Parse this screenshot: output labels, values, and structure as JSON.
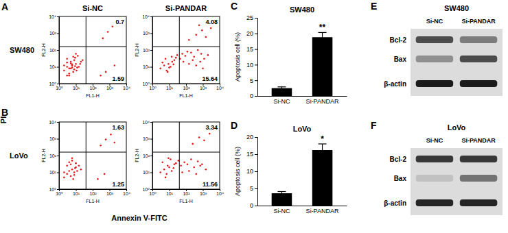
{
  "figure": {
    "panels": [
      "A",
      "B",
      "C",
      "D",
      "E",
      "F"
    ],
    "flow_rows": [
      "SW480",
      "LoVo"
    ],
    "flow_columns": [
      "Si-NC",
      "Si-PANDAR"
    ],
    "x_label": "Annexin V-FITC",
    "y_label": "PI"
  },
  "chart_data": [
    {
      "type": "scatter",
      "log": true,
      "color": "#e41a1c",
      "x_label": "FL1-H",
      "y_label": "FL2-H",
      "xlim": [
        1,
        10000
      ],
      "ylim": [
        1,
        10000
      ],
      "xticks": [
        {
          "value": 1,
          "label": "10⁰"
        },
        {
          "value": 10,
          "label": "10¹"
        },
        {
          "value": 100,
          "label": "10²"
        },
        {
          "value": 1000,
          "label": "10³"
        },
        {
          "value": 10000,
          "label": "10⁴"
        }
      ],
      "yticks": [
        {
          "value": 1,
          "label": "10⁰"
        },
        {
          "value": 10,
          "label": "10¹"
        },
        {
          "value": 100,
          "label": "10²"
        },
        {
          "value": 1000,
          "label": "10³"
        },
        {
          "value": 10000,
          "label": "10⁴"
        }
      ],
      "gates": {
        "x": 40,
        "y": 160
      },
      "quadrants": {
        "upper_right": 0.7,
        "lower_right": 1.59
      },
      "x": [
        2,
        3,
        4,
        5,
        6,
        8,
        10,
        12,
        3,
        5,
        7,
        9,
        4,
        6,
        8,
        11,
        2,
        3,
        5,
        7,
        15,
        20,
        6,
        9,
        4,
        13,
        18,
        25,
        3,
        10,
        400,
        800,
        1500,
        300,
        600,
        2000
      ],
      "values": [
        6,
        10,
        4,
        8,
        12,
        7,
        15,
        9,
        18,
        20,
        5,
        11,
        3,
        14,
        25,
        6,
        12,
        30,
        16,
        40,
        10,
        20,
        9,
        35,
        8,
        45,
        15,
        25,
        3,
        60,
        500,
        1200,
        2500,
        3,
        5,
        12
      ]
    },
    {
      "type": "scatter",
      "log": true,
      "color": "#e41a1c",
      "x_label": "FL1-H",
      "y_label": "FL2-H",
      "xlim": [
        1,
        10000
      ],
      "ylim": [
        1,
        10000
      ],
      "xticks": [
        {
          "value": 1,
          "label": "10⁰"
        },
        {
          "value": 10,
          "label": "10¹"
        },
        {
          "value": 100,
          "label": "10²"
        },
        {
          "value": 1000,
          "label": "10³"
        },
        {
          "value": 10000,
          "label": "10⁴"
        }
      ],
      "yticks": [
        {
          "value": 1,
          "label": "10⁰"
        },
        {
          "value": 10,
          "label": "10¹"
        },
        {
          "value": 100,
          "label": "10²"
        },
        {
          "value": 1000,
          "label": "10³"
        },
        {
          "value": 10000,
          "label": "10⁴"
        }
      ],
      "gates": {
        "x": 40,
        "y": 160
      },
      "quadrants": {
        "upper_right": 4.08,
        "lower_right": 15.64
      },
      "x": [
        3,
        5,
        7,
        9,
        12,
        15,
        20,
        4,
        6,
        10,
        14,
        25,
        8,
        18,
        30,
        45,
        60,
        90,
        120,
        200,
        300,
        500,
        800,
        1200,
        70,
        150,
        250,
        400,
        700,
        1000,
        2000,
        150,
        400,
        900,
        1500,
        3000,
        600
      ],
      "values": [
        8,
        12,
        6,
        15,
        10,
        20,
        25,
        18,
        30,
        9,
        40,
        35,
        5,
        14,
        50,
        30,
        60,
        45,
        80,
        70,
        40,
        100,
        60,
        30,
        20,
        15,
        25,
        12,
        20,
        8,
        50,
        400,
        800,
        1500,
        600,
        2000,
        3000
      ]
    },
    {
      "type": "scatter",
      "log": true,
      "color": "#e41a1c",
      "x_label": "FL1-H",
      "y_label": "FL2-H",
      "xlim": [
        1,
        10000
      ],
      "ylim": [
        1,
        10000
      ],
      "xticks": [
        {
          "value": 1,
          "label": "10⁰"
        },
        {
          "value": 10,
          "label": "10¹"
        },
        {
          "value": 100,
          "label": "10²"
        },
        {
          "value": 1000,
          "label": "10³"
        },
        {
          "value": 10000,
          "label": "10⁴"
        }
      ],
      "yticks": [
        {
          "value": 1,
          "label": "10⁰"
        },
        {
          "value": 10,
          "label": "10¹"
        },
        {
          "value": 100,
          "label": "10²"
        },
        {
          "value": 1000,
          "label": "10³"
        },
        {
          "value": 10000,
          "label": "10⁴"
        }
      ],
      "gates": {
        "x": 40,
        "y": 160
      },
      "quadrants": {
        "upper_right": 1.63,
        "lower_right": 1.25
      },
      "x": [
        2,
        3,
        4,
        5,
        6,
        8,
        10,
        3,
        5,
        7,
        9,
        12,
        4,
        6,
        8,
        15,
        20,
        2,
        6,
        10,
        300,
        600,
        1200,
        2000,
        200,
        500
      ],
      "values": [
        5,
        8,
        12,
        6,
        15,
        10,
        20,
        25,
        30,
        4,
        18,
        12,
        40,
        50,
        7,
        25,
        15,
        10,
        70,
        35,
        400,
        900,
        1800,
        600,
        4,
        8
      ]
    },
    {
      "type": "scatter",
      "log": true,
      "color": "#e41a1c",
      "x_label": "FL1-H",
      "y_label": "FL2-H",
      "xlim": [
        1,
        10000
      ],
      "ylim": [
        1,
        10000
      ],
      "xticks": [
        {
          "value": 1,
          "label": "10⁰"
        },
        {
          "value": 10,
          "label": "10¹"
        },
        {
          "value": 100,
          "label": "10²"
        },
        {
          "value": 1000,
          "label": "10³"
        },
        {
          "value": 10000,
          "label": "10⁴"
        }
      ],
      "yticks": [
        {
          "value": 1,
          "label": "10⁰"
        },
        {
          "value": 10,
          "label": "10¹"
        },
        {
          "value": 100,
          "label": "10²"
        },
        {
          "value": 1000,
          "label": "10³"
        },
        {
          "value": 10000,
          "label": "10⁴"
        }
      ],
      "gates": {
        "x": 40,
        "y": 160
      },
      "quadrants": {
        "upper_right": 3.34,
        "lower_right": 11.56
      },
      "x": [
        3,
        5,
        7,
        10,
        14,
        20,
        4,
        8,
        12,
        25,
        35,
        50,
        80,
        120,
        200,
        300,
        500,
        900,
        1500,
        60,
        150,
        400,
        700,
        250,
        600,
        1200,
        2500,
        6,
        9,
        18
      ],
      "values": [
        10,
        15,
        8,
        20,
        12,
        30,
        40,
        25,
        60,
        35,
        50,
        25,
        40,
        30,
        60,
        20,
        45,
        30,
        15,
        10,
        12,
        8,
        25,
        500,
        1200,
        800,
        2000,
        5,
        70,
        18
      ]
    },
    {
      "type": "bar",
      "title": "SW480",
      "y_label": "Apoptosis cell (%)",
      "categories": [
        "Si-NC",
        "Si-PANDAR"
      ],
      "values": [
        2.5,
        18.8
      ],
      "errors": [
        0.4,
        1.5
      ],
      "significance": [
        null,
        "**"
      ],
      "color": "#000000",
      "ylim": [
        0,
        25
      ],
      "yticks": [
        0,
        5,
        10,
        15,
        20,
        25
      ]
    },
    {
      "type": "bar",
      "title": "LoVo",
      "y_label": "Apoptosis cell (%)",
      "categories": [
        "Si-NC",
        "Si-PANDAR"
      ],
      "values": [
        3.6,
        16.2
      ],
      "errors": [
        0.5,
        1.8
      ],
      "significance": [
        null,
        "*"
      ],
      "color": "#000000",
      "ylim": [
        0,
        20
      ],
      "yticks": [
        0,
        5,
        10,
        15,
        20
      ]
    }
  ],
  "blots": [
    {
      "title": "SW480",
      "lanes": [
        "Si-NC",
        "Si-PANDAR"
      ],
      "rows": [
        {
          "label": "Bcl-2",
          "intensity": [
            0.7,
            0.45
          ]
        },
        {
          "label": "Bax",
          "intensity": [
            0.35,
            0.7
          ]
        },
        {
          "label": "β-actin",
          "intensity": [
            0.95,
            0.95
          ]
        }
      ]
    },
    {
      "title": "LoVo",
      "lanes": [
        "Si-NC",
        "Si-PANDAR"
      ],
      "rows": [
        {
          "label": "Bcl-2",
          "intensity": [
            0.8,
            0.8
          ]
        },
        {
          "label": "Bax",
          "intensity": [
            0.1,
            0.5
          ]
        },
        {
          "label": "β-actin",
          "intensity": [
            0.9,
            0.9
          ]
        }
      ]
    }
  ]
}
